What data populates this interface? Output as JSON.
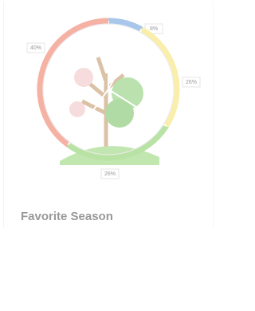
{
  "chart_data": {
    "type": "pie",
    "title": "Favorite Season",
    "series": [
      {
        "color": "#6fa3df",
        "values": [
          8
        ],
        "value_labels": [
          "8%"
        ]
      },
      {
        "color": "#f6e474",
        "values": [
          26
        ],
        "value_labels": [
          "26%"
        ]
      },
      {
        "color": "#8ccf6a",
        "values": [
          26
        ],
        "value_labels": [
          "26%"
        ]
      },
      {
        "color": "#ef7f68",
        "values": [
          40
        ],
        "value_labels": [
          "40%"
        ]
      }
    ]
  }
}
